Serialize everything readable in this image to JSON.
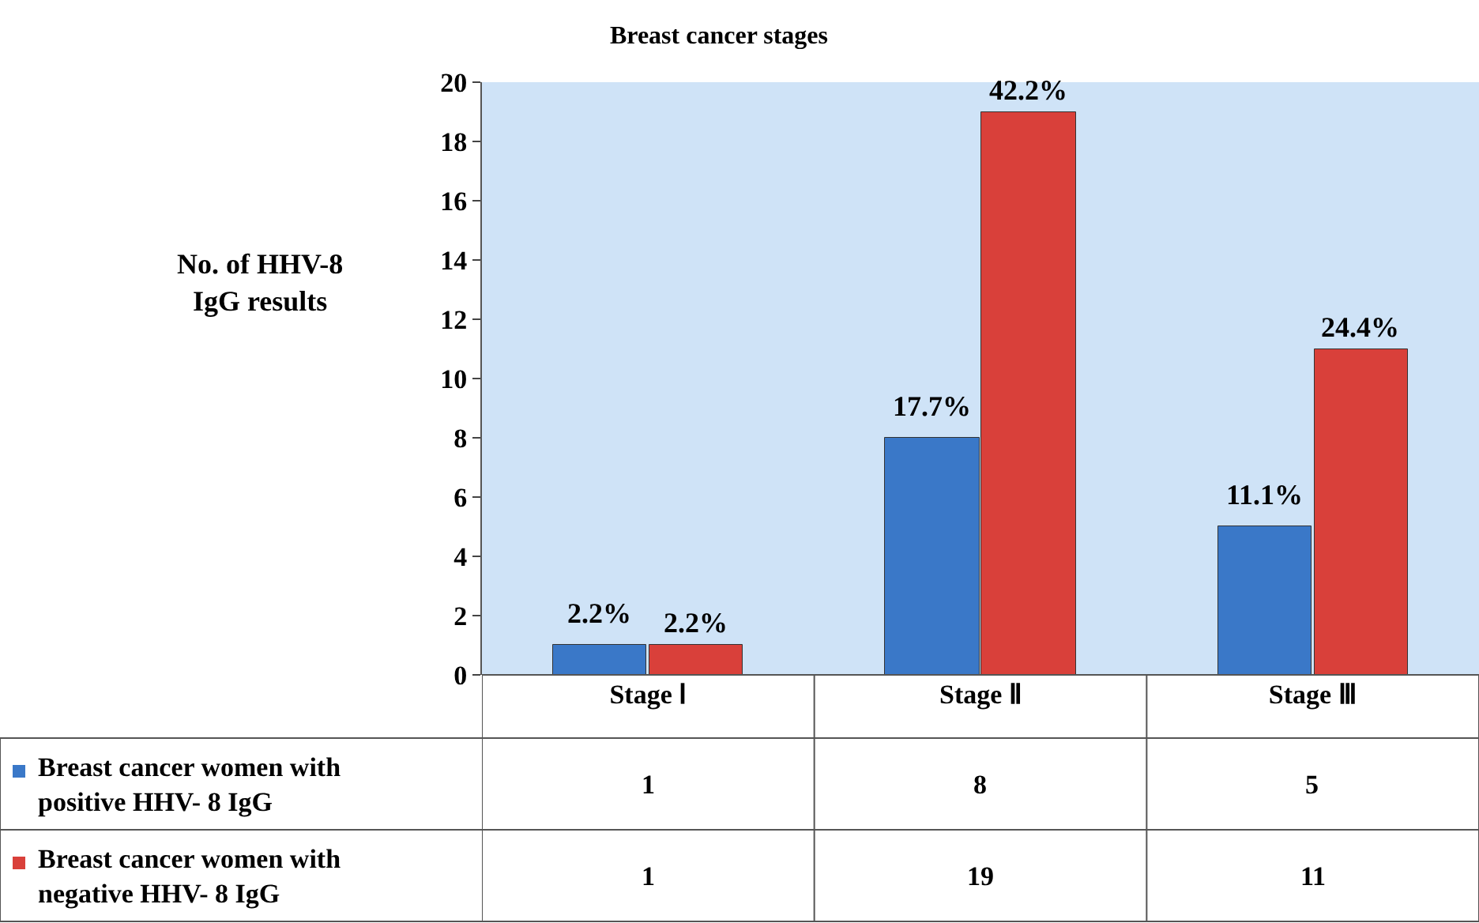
{
  "chart_data": {
    "type": "bar",
    "title": "Breast cancer stages",
    "ylabel": "No. of HHV-8 IgG results",
    "categories": [
      "Stage Ⅰ",
      "Stage Ⅱ",
      "Stage Ⅲ"
    ],
    "series": [
      {
        "name": "Breast cancer women with positive HHV- 8 IgG",
        "color": "#3a78c8",
        "values": [
          1,
          8,
          5
        ]
      },
      {
        "name": "Breast cancer women with negative HHV- 8 IgG",
        "color": "#d9403a",
        "values": [
          1,
          19,
          11
        ]
      }
    ],
    "annotations": [
      {
        "text": "2.2%",
        "x": "Stage Ⅰ",
        "y": 1
      },
      {
        "text": "17.7%",
        "x": "Stage Ⅱ",
        "y": 8
      },
      {
        "text": "11.1%",
        "x": "Stage Ⅲ",
        "y": 5
      },
      {
        "text": "2.2%",
        "x": "Stage Ⅰ",
        "y": 1
      },
      {
        "text": "42.2%",
        "x": "Stage Ⅱ",
        "y": 19
      },
      {
        "text": "24.4%",
        "x": "Stage Ⅲ",
        "y": 11
      }
    ],
    "ylim": [
      0,
      20
    ],
    "yticks": [
      0,
      2,
      4,
      6,
      8,
      10,
      12,
      14,
      16,
      18,
      20
    ],
    "grid": false,
    "data_labels": true,
    "legend": "bottom left"
  }
}
